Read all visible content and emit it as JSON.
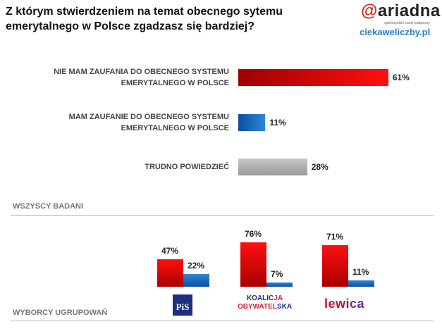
{
  "title": "Z którym stwierdzeniem na temat obecnego sytemu emerytalnego w Polsce zgadzasz się bardziej?",
  "logo": {
    "brand": "ariadna",
    "tagline": "ogólnopolski panel badawczy",
    "site": "ciekaweliczby.pl"
  },
  "colors": {
    "no_trust": "#e00000",
    "trust": "#1565b8",
    "hard_to_say": "#aaaaaa"
  },
  "chart_data": [
    {
      "type": "bar",
      "orientation": "horizontal",
      "section_label": "WSZYSCY BADANI",
      "categories": [
        "NIE MAM ZAUFANIA DO OBECNEGO SYSTEMU EMERYTALNEGO W POLSCE",
        "MAM ZAUFANIE DO OBECNEGO SYSTEMU EMERYTALNEGO W POLSCE",
        "TRUDNO POWIEDZIEĆ"
      ],
      "category_lines": [
        [
          "NIE MAM ZAUFANIA DO OBECNEGO SYSTEMU",
          "EMERYTALNEGO W POLSCE"
        ],
        [
          "MAM ZAUFANIE DO OBECNEGO SYSTEMU",
          "EMERYTALNEGO W POLSCE"
        ],
        [
          "TRUDNO POWIEDZIEĆ"
        ]
      ],
      "values": [
        61,
        11,
        28
      ],
      "labels": [
        "61%",
        "11%",
        "28%"
      ],
      "unit": "%"
    },
    {
      "type": "bar",
      "orientation": "vertical",
      "section_label": "WYBORCY UGRUPOWAŃ",
      "categories": [
        "PiS",
        "KOALICJA OBYWATELSKA",
        "lewica"
      ],
      "series": [
        {
          "values": [
            47,
            76,
            71
          ],
          "labels": [
            "47%",
            "76%",
            "71%"
          ]
        },
        {
          "values": [
            22,
            7,
            11
          ],
          "labels": [
            "22%",
            "7%",
            "11%"
          ]
        }
      ],
      "unit": "%"
    }
  ],
  "party_logos": {
    "pis": "PiS",
    "ko_1a": "KOALIC",
    "ko_1b": "JA",
    "ko_2a": "OBYWATEL",
    "ko_2b": "SKA",
    "lewica_a": "lew",
    "lewica_b": "ica"
  }
}
